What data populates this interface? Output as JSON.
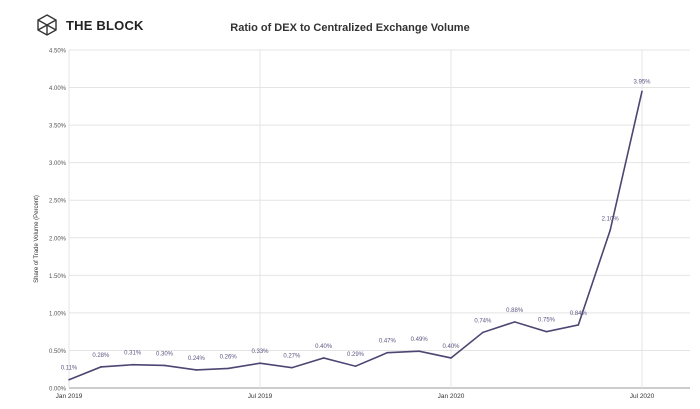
{
  "brand": {
    "name": "THE BLOCK"
  },
  "chart_data": {
    "type": "line",
    "title": "Ratio of DEX to Centralized Exchange Volume",
    "xlabel": "",
    "ylabel": "Share of Trade Volume (Percent)",
    "ylim": [
      0,
      4.5
    ],
    "yticks": [
      "0.00%",
      "0.50%",
      "1.00%",
      "1.50%",
      "2.00%",
      "2.50%",
      "3.00%",
      "3.50%",
      "4.00%",
      "4.50%"
    ],
    "xticks": [
      {
        "label": "Jan 2019",
        "index": 0
      },
      {
        "label": "Jul 2019",
        "index": 6
      },
      {
        "label": "Jan 2020",
        "index": 12
      },
      {
        "label": "Jul 2020",
        "index": 18
      }
    ],
    "x": [
      "Jan 2019",
      "Feb 2019",
      "Mar 2019",
      "Apr 2019",
      "May 2019",
      "Jun 2019",
      "Jul 2019",
      "Aug 2019",
      "Sep 2019",
      "Oct 2019",
      "Nov 2019",
      "Dec 2019",
      "Jan 2020",
      "Feb 2020",
      "Mar 2020",
      "Apr 2020",
      "May 2020",
      "Jun 2020",
      "Jul 2020"
    ],
    "series": [
      {
        "name": "DEX share",
        "color": "#4b4672",
        "values": [
          0.11,
          0.28,
          0.31,
          0.3,
          0.24,
          0.26,
          0.33,
          0.27,
          0.4,
          0.29,
          0.47,
          0.49,
          0.4,
          0.74,
          0.88,
          0.75,
          0.84,
          2.1,
          3.95
        ]
      }
    ],
    "grid": true,
    "legend": "none"
  }
}
